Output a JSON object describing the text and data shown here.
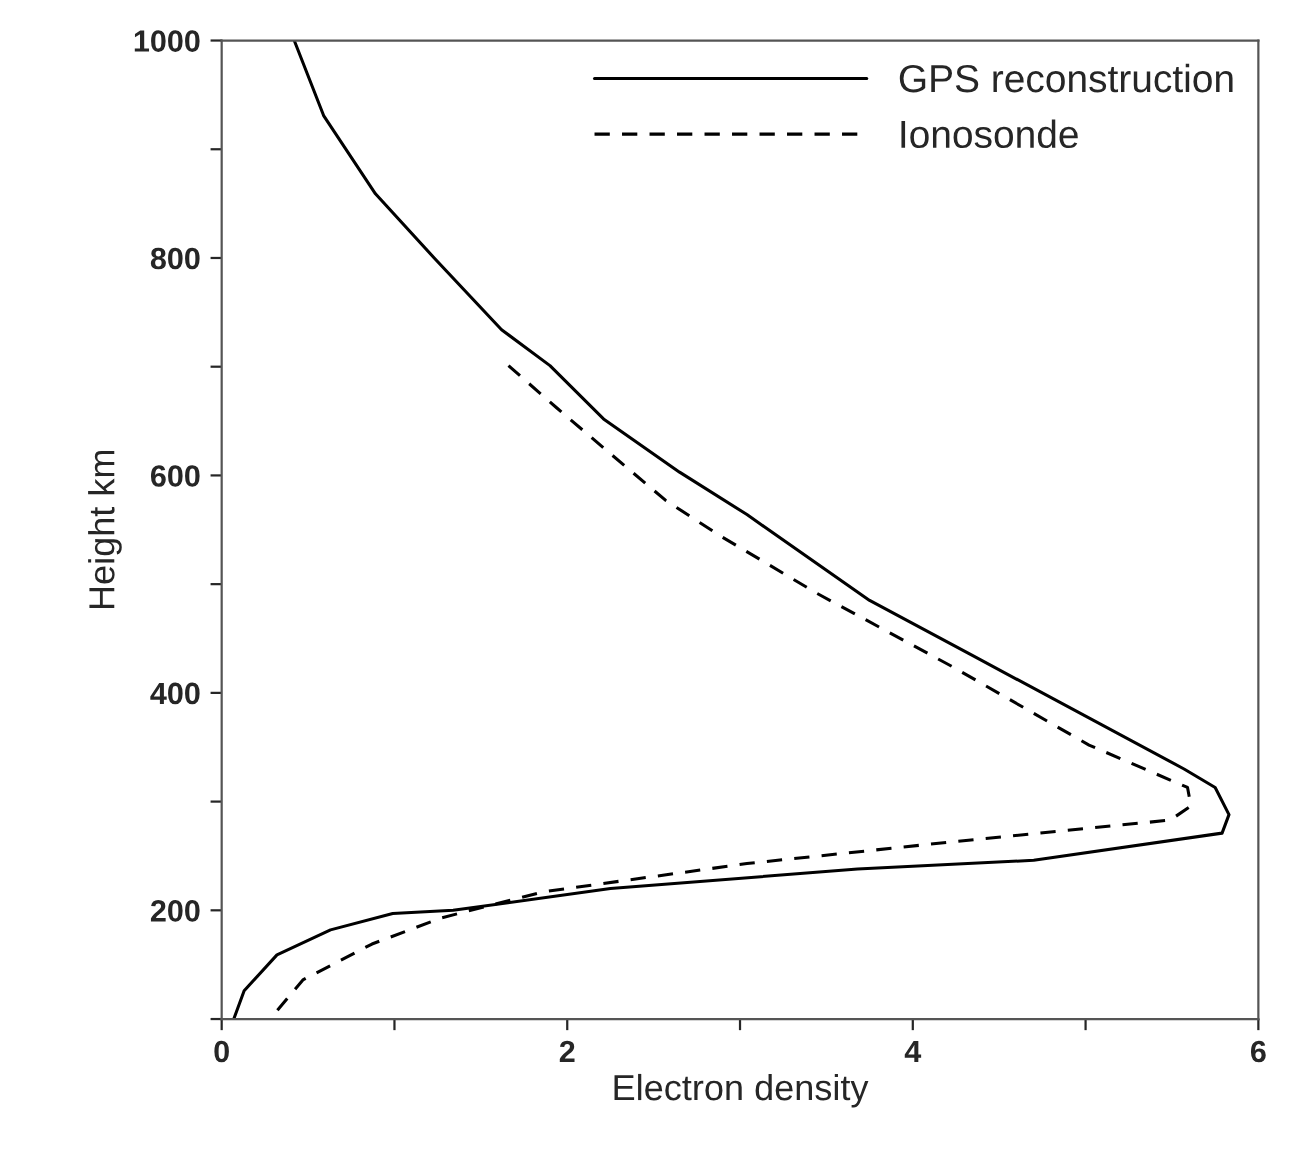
{
  "chart_data": {
    "type": "line",
    "xlabel": "Electron density",
    "ylabel": "Height km",
    "xlim": [
      0,
      6
    ],
    "ylim": [
      100,
      1000
    ],
    "xticks": [
      0,
      {
        "value": 1,
        "label": null
      },
      2,
      {
        "value": 3,
        "label": null
      },
      4,
      {
        "value": 5,
        "label": null
      },
      6
    ],
    "yticks": [
      {
        "value": 100,
        "label": null
      },
      200,
      {
        "value": 300,
        "label": null
      },
      400,
      {
        "value": 500,
        "label": null
      },
      600,
      {
        "value": 700,
        "label": null
      },
      800,
      {
        "value": 900,
        "label": null
      },
      1000
    ],
    "grid": false,
    "legend": "top right",
    "series": [
      {
        "name": "GPS reconstruction",
        "color": "#000000",
        "line_style": "solid",
        "x": [
          0.42,
          0.59,
          0.89,
          1.23,
          1.62,
          1.9,
          2.21,
          2.65,
          3.04,
          3.75,
          4.35,
          5.57,
          5.75,
          5.83,
          5.79,
          4.7,
          3.68,
          2.25,
          1.34,
          0.99,
          0.63,
          0.32,
          0.13,
          0.07
        ],
        "values": [
          1000,
          931,
          859,
          800,
          734,
          701,
          652,
          603,
          564,
          485,
          434,
          330,
          313,
          288,
          271,
          246,
          238,
          220,
          200,
          197,
          182,
          159,
          126,
          100
        ]
      },
      {
        "name": "Ionosonde",
        "color": "#000000",
        "line_style": "dashed",
        "x": [
          1.66,
          1.94,
          2.25,
          2.57,
          2.89,
          3.44,
          4.23,
          5.02,
          5.59,
          5.61,
          5.49,
          4.23,
          3.04,
          1.86,
          1.27,
          0.87,
          0.47,
          0.28
        ],
        "values": [
          701,
          662,
          620,
          577,
          544,
          492,
          424,
          352,
          313,
          296,
          283,
          263,
          243,
          217,
          193,
          169,
          136,
          100
        ]
      }
    ]
  }
}
